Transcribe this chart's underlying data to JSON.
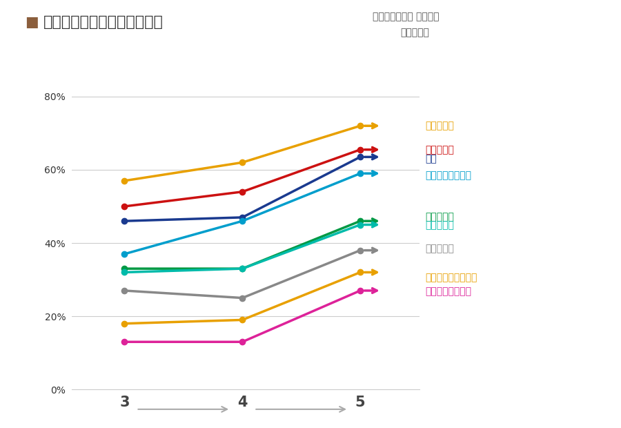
{
  "title": "転居後の住宅の断熱グレード",
  "source": "出典：近畿大学 建築学部\n岩前研究室",
  "title_color": "#333333",
  "source_color": "#555555",
  "x_values": [
    3,
    4,
    5
  ],
  "series": [
    {
      "label": "気管支喘息",
      "color": "#E8A000",
      "values": [
        0.57,
        0.62,
        0.72
      ],
      "label_color": "#E8A000"
    },
    {
      "label": "のどの痛み",
      "color": "#CC1111",
      "values": [
        0.5,
        0.54,
        0.655
      ],
      "label_color": "#CC1111"
    },
    {
      "label": "せき",
      "color": "#1A3A8F",
      "values": [
        0.46,
        0.47,
        0.635
      ],
      "label_color": "#1A3A8F"
    },
    {
      "label": "アトピー性皮膚炎",
      "color": "#009ECC",
      "values": [
        0.37,
        0.46,
        0.59
      ],
      "label_color": "#009ECC"
    },
    {
      "label": "手足の冷え",
      "color": "#009944",
      "values": [
        0.33,
        0.33,
        0.46
      ],
      "label_color": "#009944"
    },
    {
      "label": "肌のかゆみ",
      "color": "#00BBAA",
      "values": [
        0.32,
        0.33,
        0.45
      ],
      "label_color": "#00BBAA"
    },
    {
      "label": "目のかゆみ",
      "color": "#888888",
      "values": [
        0.27,
        0.25,
        0.38
      ],
      "label_color": "#888888"
    },
    {
      "label": "アレルギー性結膜炎",
      "color": "#E8A000",
      "values": [
        0.18,
        0.19,
        0.32
      ],
      "label_color": "#E8A000"
    },
    {
      "label": "アレルギー性鼻炎",
      "color": "#DD2299",
      "values": [
        0.13,
        0.13,
        0.27
      ],
      "label_color": "#DD2299"
    }
  ],
  "ylim": [
    0,
    0.9
  ],
  "yticks": [
    0.0,
    0.2,
    0.4,
    0.6,
    0.8
  ],
  "ytick_labels": [
    "0%",
    "20%",
    "40%",
    "60%",
    "80%"
  ],
  "xticks": [
    3,
    4,
    5
  ],
  "background_color": "#FFFFFF",
  "grid_color": "#CCCCCC",
  "title_square_color": "#8B5E3C",
  "marker_size": 6,
  "line_width": 2.5,
  "arrow_color": "#AAAAAA",
  "label_y_positions": [
    0.72,
    0.655,
    0.63,
    0.585,
    0.472,
    0.448,
    0.385,
    0.305,
    0.268
  ]
}
